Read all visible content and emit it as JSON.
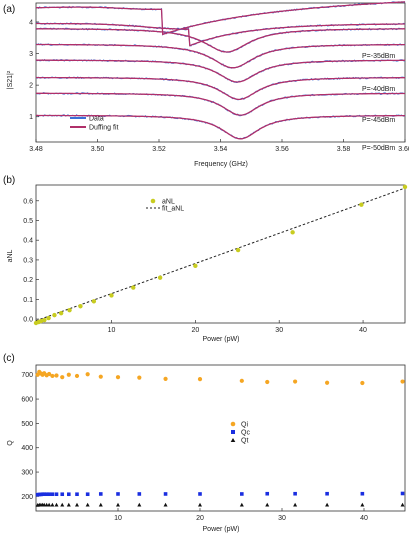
{
  "colors": {
    "data_blue": "#3a6fd8",
    "fit_magenta": "#b0306a",
    "anl_yellow": "#c8cc20",
    "qi_orange": "#f5a623",
    "qc_blue": "#1a2ee0",
    "qt_black": "#111111"
  },
  "chart_data": [
    {
      "panel_label": "(a)",
      "type": "line",
      "xlabel": "Frequency (GHz)",
      "ylabel": "|S21|²",
      "xlim": [
        3.48,
        3.6
      ],
      "ylim": [
        0.2,
        4.6
      ],
      "xticks": [
        "3.48",
        "3.50",
        "3.52",
        "3.54",
        "3.56",
        "3.58",
        "3.60"
      ],
      "yticks": [
        "1",
        "2",
        "3",
        "4"
      ],
      "legend": {
        "position": "bottom-left",
        "entries": [
          "Data",
          "Duffing fit"
        ]
      },
      "annotations": [
        "P=-35dBm",
        "P=-40dBm",
        "P=-45dBm",
        "P=-50dBm"
      ],
      "series": [
        {
          "offset": 0.2,
          "f0": 3.5465,
          "depth": 0.75,
          "width": 0.0075,
          "bist": 0
        },
        {
          "offset": 0.9,
          "f0": 3.5465,
          "depth": 0.7,
          "width": 0.0075,
          "bist": 0
        },
        {
          "offset": 1.4,
          "f0": 3.546,
          "depth": 0.7,
          "width": 0.0078,
          "bist": 0
        },
        {
          "offset": 1.95,
          "f0": 3.5455,
          "depth": 0.7,
          "width": 0.008,
          "bist": 0
        },
        {
          "offset": 2.45,
          "f0": 3.544,
          "depth": 0.75,
          "width": 0.0085,
          "bist": 0
        },
        {
          "offset": 2.95,
          "f0": 3.542,
          "depth": 0.75,
          "width": 0.009,
          "bist": 0
        },
        {
          "offset": 3.45,
          "f0": 3.533,
          "depth": 0.7,
          "width": 0.01,
          "bist": 1
        },
        {
          "offset": 4.45,
          "f0": 3.521,
          "depth": 0.85,
          "width": 0.004,
          "bist": 2
        }
      ]
    },
    {
      "panel_label": "(b)",
      "type": "scatter",
      "xlabel": "Power (pW)",
      "ylabel": "aNL",
      "xlim": [
        1.0,
        45.0
      ],
      "ylim": [
        -0.02,
        0.68
      ],
      "xticks": [
        "10",
        "20",
        "30",
        "40"
      ],
      "yticks": [
        "0.0",
        "0.1",
        "0.2",
        "0.3",
        "0.4",
        "0.5",
        "0.6"
      ],
      "legend": {
        "position": "top-left",
        "entries": [
          "aNL",
          "fit_aNL"
        ]
      },
      "x": [
        1.0,
        1.3,
        1.6,
        2.0,
        2.5,
        3.2,
        4.0,
        5.0,
        6.3,
        7.9,
        10.0,
        12.6,
        15.8,
        20.0,
        25.1,
        31.6,
        39.8,
        45.0
      ],
      "y": [
        -0.02,
        -0.015,
        -0.01,
        -0.005,
        0.005,
        0.02,
        0.03,
        0.045,
        0.065,
        0.09,
        0.12,
        0.16,
        0.21,
        0.27,
        0.35,
        0.44,
        0.58,
        0.67
      ],
      "fit": {
        "slope": 0.0153,
        "intercept": -0.024
      }
    },
    {
      "panel_label": "(c)",
      "type": "scatter",
      "xlabel": "Power (pW)",
      "ylabel": "Q",
      "xlim": [
        0.0,
        45.0
      ],
      "ylim": [
        140,
        740
      ],
      "xticks": [
        "10",
        "20",
        "30",
        "40"
      ],
      "yticks": [
        "200",
        "300",
        "400",
        "500",
        "600",
        "700"
      ],
      "legend": {
        "position": "center-right",
        "entries": [
          "Qi",
          "Qc",
          "Qt"
        ]
      },
      "x": [
        0.2,
        0.4,
        0.6,
        0.8,
        1.0,
        1.3,
        1.6,
        2.0,
        2.5,
        3.2,
        4.0,
        5.0,
        6.3,
        7.9,
        10.0,
        12.6,
        15.8,
        20.0,
        25.1,
        28.2,
        31.6,
        35.5,
        39.8,
        44.7
      ],
      "series": [
        {
          "name": "Qi",
          "values": [
            700,
            712,
            705,
            700,
            706,
            698,
            703,
            695,
            697,
            690,
            700,
            695,
            702,
            692,
            690,
            688,
            683,
            682,
            675,
            670,
            672,
            667,
            666,
            672
          ]
        },
        {
          "name": "Qc",
          "values": [
            207,
            208,
            208,
            209,
            209,
            209,
            209,
            209,
            209,
            209,
            209,
            209,
            209,
            210,
            210,
            210,
            210,
            210,
            210,
            211,
            211,
            211,
            211,
            212
          ]
        },
        {
          "name": "Qt",
          "values": [
            164,
            165,
            165,
            165,
            165,
            165,
            165,
            165,
            165,
            165,
            165,
            165,
            165,
            165,
            165,
            165,
            165,
            165,
            165,
            165,
            165,
            165,
            165,
            165
          ]
        }
      ]
    }
  ]
}
